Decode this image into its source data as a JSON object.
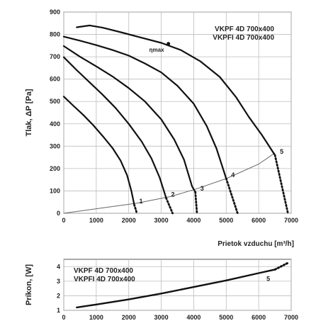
{
  "chart_data": [
    {
      "type": "line",
      "id": "pressure",
      "ylabel": "Tlak, ΔP [Pa]",
      "xlabel": "Prietok vzduchu [m³/h]",
      "xlim": [
        0,
        7000
      ],
      "ylim": [
        0,
        900
      ],
      "x_ticks": [
        "0",
        "1000",
        "2000",
        "3000",
        "4000",
        "5000",
        "6000",
        "7000"
      ],
      "y_ticks": [
        "0",
        "100",
        "200",
        "300",
        "400",
        "500",
        "600",
        "700",
        "800",
        "900"
      ],
      "model_labels": [
        "VKPF 4D 700x400",
        "VKPFI 4D 700x400"
      ],
      "eta_label": "ηmax",
      "eta_point": {
        "x": 3220,
        "y": 758
      },
      "grid": true,
      "series": [
        {
          "name": "1",
          "solid": [
            [
              0,
              522
            ],
            [
              300,
              480
            ],
            [
              600,
              440
            ],
            [
              900,
              395
            ],
            [
              1200,
              345
            ],
            [
              1500,
              292
            ],
            [
              1750,
              235
            ],
            [
              1950,
              170
            ],
            [
              2080,
              100
            ],
            [
              2170,
              38
            ]
          ],
          "dotted": [
            [
              2170,
              38
            ],
            [
              2250,
              0
            ]
          ]
        },
        {
          "name": "2",
          "solid": [
            [
              0,
              698
            ],
            [
              400,
              640
            ],
            [
              800,
              585
            ],
            [
              1200,
              530
            ],
            [
              1600,
              470
            ],
            [
              2000,
              400
            ],
            [
              2400,
              320
            ],
            [
              2700,
              245
            ],
            [
              2950,
              160
            ],
            [
              3150,
              68
            ]
          ],
          "dotted": [
            [
              3150,
              68
            ],
            [
              3350,
              0
            ]
          ]
        },
        {
          "name": "3",
          "solid": [
            [
              0,
              748
            ],
            [
              500,
              700
            ],
            [
              1000,
              657
            ],
            [
              1500,
              612
            ],
            [
              2000,
              560
            ],
            [
              2500,
              500
            ],
            [
              3000,
              420
            ],
            [
              3400,
              330
            ],
            [
              3700,
              240
            ],
            [
              3950,
              120
            ],
            [
              4050,
              95
            ]
          ],
          "dotted": [
            [
              4050,
              95
            ],
            [
              4100,
              0
            ]
          ]
        },
        {
          "name": "4",
          "solid": [
            [
              0,
              790
            ],
            [
              500,
              772
            ],
            [
              1000,
              752
            ],
            [
              1500,
              730
            ],
            [
              2000,
              705
            ],
            [
              2500,
              670
            ],
            [
              3000,
              630
            ],
            [
              3500,
              570
            ],
            [
              4000,
              490
            ],
            [
              4400,
              390
            ],
            [
              4700,
              290
            ],
            [
              4900,
              200
            ],
            [
              5000,
              155
            ]
          ],
          "dotted": [
            [
              5000,
              155
            ],
            [
              5350,
              0
            ]
          ]
        },
        {
          "name": "5",
          "solid": [
            [
              400,
              832
            ],
            [
              800,
              840
            ],
            [
              1200,
              830
            ],
            [
              1800,
              808
            ],
            [
              2400,
              785
            ],
            [
              3000,
              762
            ],
            [
              3600,
              730
            ],
            [
              4200,
              680
            ],
            [
              4800,
              610
            ],
            [
              5300,
              520
            ],
            [
              5700,
              430
            ],
            [
              6100,
              350
            ],
            [
              6500,
              260
            ]
          ],
          "dotted": [
            [
              6500,
              260
            ],
            [
              6900,
              0
            ]
          ]
        }
      ],
      "system_curve": [
        [
          0,
          0
        ],
        [
          2250,
          45
        ],
        [
          3300,
          75
        ],
        [
          4100,
          110
        ],
        [
          5000,
          155
        ],
        [
          6000,
          220
        ],
        [
          6500,
          270
        ]
      ]
    },
    {
      "type": "line",
      "id": "power",
      "ylabel": "Príkon, [W]",
      "xlim": [
        0,
        7000
      ],
      "ylim": [
        1,
        4.5
      ],
      "x_ticks": [
        "0",
        "1000",
        "2000",
        "3000",
        "4000",
        "5000",
        "6000",
        "7000"
      ],
      "y_ticks": [
        "1",
        "2",
        "3",
        "4"
      ],
      "model_labels": [
        "VKPF 4D 700x400",
        "VKPFI 4D 700x400"
      ],
      "grid": true,
      "series": [
        {
          "name": "5",
          "solid": [
            [
              400,
              1.2
            ],
            [
              1000,
              1.4
            ],
            [
              2000,
              1.75
            ],
            [
              3000,
              2.15
            ],
            [
              4000,
              2.6
            ],
            [
              5000,
              3.05
            ],
            [
              6000,
              3.55
            ],
            [
              6500,
              3.8
            ]
          ],
          "dotted": [
            [
              6500,
              3.8
            ],
            [
              6900,
              4.25
            ]
          ]
        }
      ]
    }
  ]
}
